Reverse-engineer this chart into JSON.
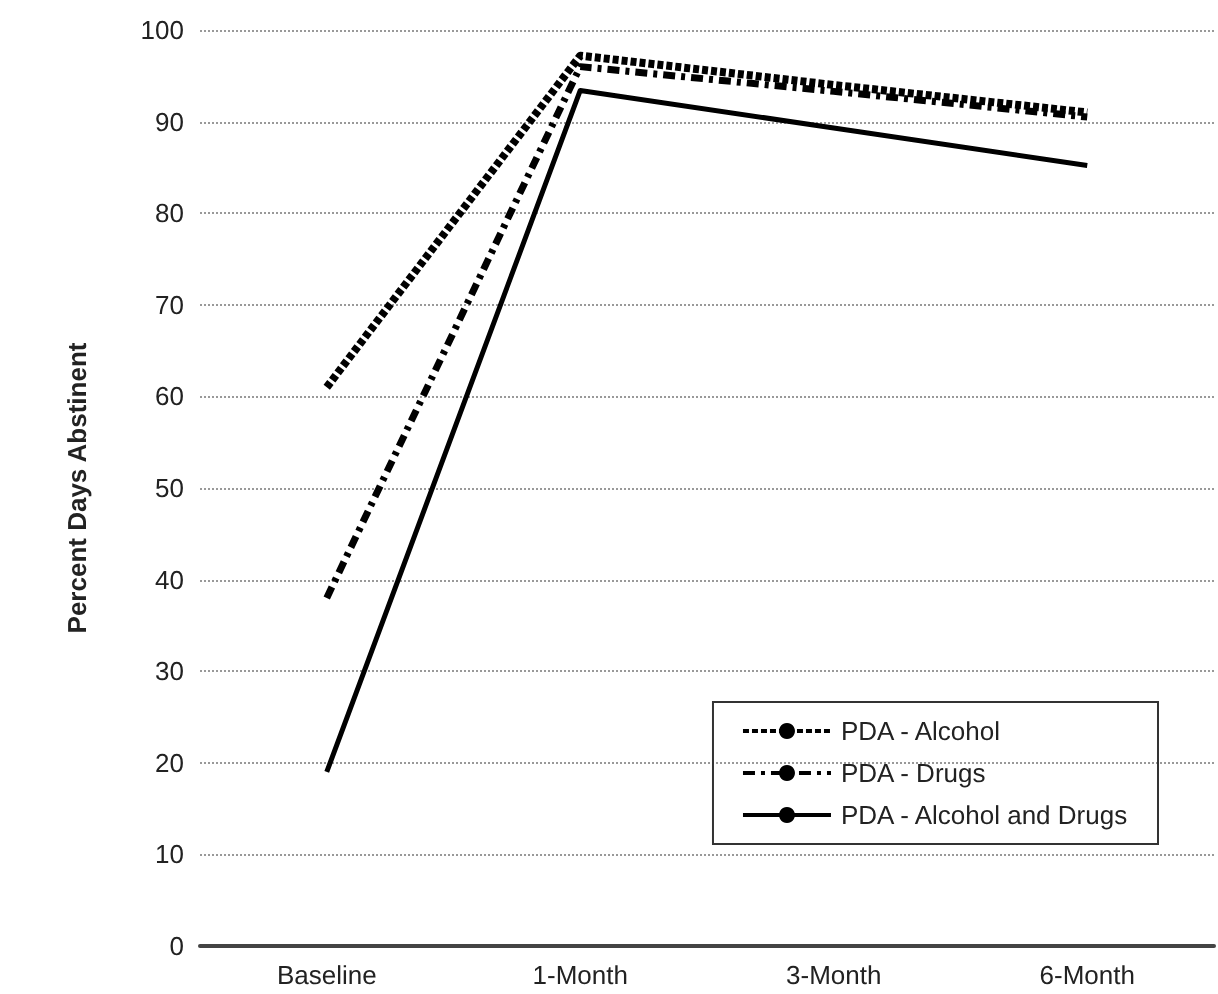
{
  "chart_data": {
    "type": "line",
    "ylabel": "Percent Days Abstinent",
    "categories": [
      "Baseline",
      "1-Month",
      "3-Month",
      "6-Month"
    ],
    "series": [
      {
        "name": "PDA - Alcohol",
        "color": "#000000",
        "line_style": "dotted",
        "values": [
          61,
          97.2,
          94,
          91
        ]
      },
      {
        "name": "PDA - Drugs",
        "color": "#000000",
        "line_style": "dashed",
        "values": [
          38,
          96,
          93.3,
          90.5
        ]
      },
      {
        "name": "PDA - Alcohol and Drugs",
        "color": "#000000",
        "line_style": "solid",
        "values": [
          19,
          93.4,
          89.3,
          85.2
        ]
      }
    ],
    "ylim": [
      0,
      100
    ],
    "yticks": [
      0,
      10,
      20,
      30,
      40,
      50,
      60,
      70,
      80,
      90,
      100
    ],
    "grid": "y",
    "legend": "bottom right",
    "marker": "none"
  }
}
